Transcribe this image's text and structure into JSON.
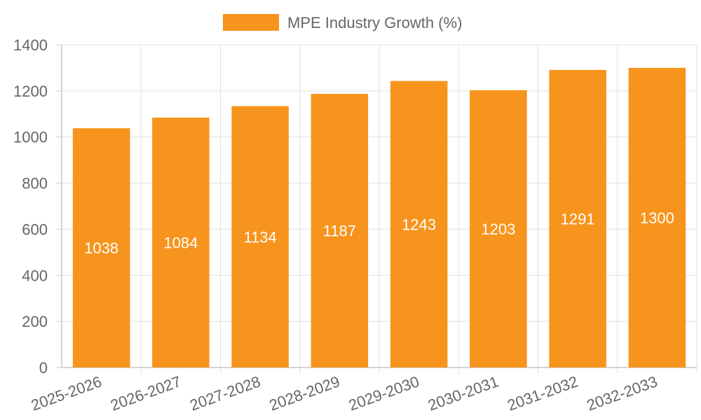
{
  "chart_data": {
    "type": "bar",
    "categories": [
      "2025-2026",
      "2026-2027",
      "2027-2028",
      "2028-2029",
      "2029-2030",
      "2030-2031",
      "2031-2032",
      "2032-2033"
    ],
    "series": [
      {
        "name": "MPE Industry Growth (%)",
        "values": [
          1038,
          1084,
          1134,
          1187,
          1243,
          1203,
          1291,
          1300
        ],
        "color": "#f7941d"
      }
    ],
    "ylim": [
      0,
      1400
    ],
    "yticks": [
      0,
      200,
      400,
      600,
      800,
      1000,
      1200,
      1400
    ],
    "grid": true,
    "legend_position": "top-center",
    "data_labels": true,
    "x_tick_rotation": "angled"
  }
}
